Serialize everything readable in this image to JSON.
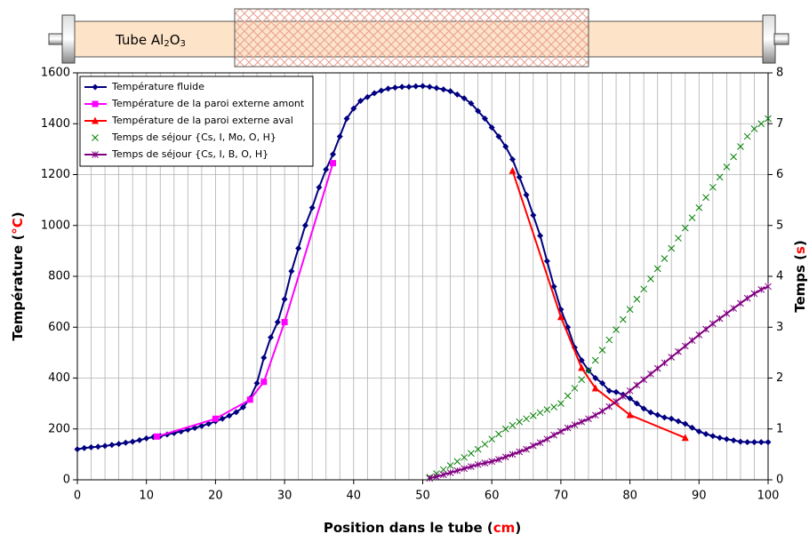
{
  "chart_data": {
    "type": "line",
    "tube_label_parts": [
      "Tube Al",
      "2",
      "O",
      "3"
    ],
    "xlabel_parts": [
      "Position dans le tube (",
      "cm",
      ")"
    ],
    "ylabel_parts": [
      "Température (",
      "°C",
      ")"
    ],
    "y2label_parts": [
      "Temps (",
      "s",
      ")"
    ],
    "xlim": [
      0,
      100
    ],
    "xticks": [
      0,
      10,
      20,
      30,
      40,
      50,
      60,
      70,
      80,
      90,
      100
    ],
    "xminorticks": [
      2,
      4,
      6,
      8,
      12,
      14,
      16,
      18,
      22,
      24,
      26,
      28,
      32,
      34,
      36,
      38,
      42,
      44,
      46,
      48,
      52,
      54,
      56,
      58,
      62,
      64,
      66,
      68,
      72,
      74,
      76,
      78,
      82,
      84,
      86,
      88,
      92,
      94,
      96,
      98
    ],
    "ylim": [
      0,
      1600
    ],
    "yticks": [
      0,
      200,
      400,
      600,
      800,
      1000,
      1200,
      1400,
      1600
    ],
    "y2lim": [
      0,
      8
    ],
    "y2ticks": [
      0,
      1,
      2,
      3,
      4,
      5,
      6,
      7,
      8
    ],
    "grid": true,
    "legend": "upper left",
    "series": [
      {
        "name": "Température fluide",
        "color": "#000080",
        "marker": "diamond",
        "line": true,
        "x": [
          0,
          1,
          2,
          3,
          4,
          5,
          6,
          7,
          8,
          9,
          10,
          11,
          12,
          13,
          14,
          15,
          16,
          17,
          18,
          19,
          20,
          21,
          22,
          23,
          24,
          25,
          26,
          27,
          28,
          29,
          30,
          31,
          32,
          33,
          34,
          35,
          36,
          37,
          38,
          39,
          40,
          41,
          42,
          43,
          44,
          45,
          46,
          47,
          48,
          49,
          50,
          51,
          52,
          53,
          54,
          55,
          56,
          57,
          58,
          59,
          60,
          61,
          62,
          63,
          64,
          65,
          66,
          67,
          68,
          69,
          70,
          71,
          72,
          73,
          74,
          75,
          76,
          77,
          78,
          79,
          80,
          81,
          82,
          83,
          84,
          85,
          86,
          87,
          88,
          89,
          90,
          91,
          92,
          93,
          94,
          95,
          96,
          97,
          98,
          99,
          100
        ],
        "values": [
          120,
          125,
          128,
          130,
          133,
          137,
          141,
          146,
          150,
          156,
          163,
          168,
          172,
          178,
          184,
          190,
          197,
          204,
          212,
          220,
          230,
          240,
          252,
          266,
          285,
          320,
          380,
          480,
          560,
          620,
          710,
          820,
          910,
          1000,
          1070,
          1150,
          1220,
          1280,
          1350,
          1420,
          1460,
          1490,
          1505,
          1520,
          1530,
          1538,
          1542,
          1545,
          1545,
          1547,
          1548,
          1545,
          1540,
          1535,
          1528,
          1515,
          1500,
          1480,
          1450,
          1420,
          1385,
          1350,
          1310,
          1260,
          1190,
          1120,
          1040,
          960,
          860,
          760,
          670,
          600,
          520,
          470,
          430,
          400,
          380,
          350,
          345,
          335,
          320,
          300,
          280,
          265,
          255,
          245,
          240,
          230,
          220,
          205,
          190,
          180,
          172,
          165,
          160,
          155,
          150,
          148,
          148,
          148,
          148
        ]
      },
      {
        "name": "Température de la paroi externe amont",
        "color": "#ff00ff",
        "marker": "square",
        "line": true,
        "x": [
          11.5,
          20,
          25,
          27,
          30,
          37
        ],
        "values": [
          170,
          240,
          315,
          385,
          620,
          1245
        ]
      },
      {
        "name": "Température de la paroi externe aval",
        "color": "#ff0000",
        "marker": "triangle",
        "line": true,
        "x": [
          63,
          70,
          73,
          75,
          80,
          88
        ],
        "values": [
          1215,
          640,
          440,
          360,
          255,
          165
        ]
      },
      {
        "name": "Temps de séjour {Cs, I, Mo, O, H}",
        "color": "#008000",
        "marker": "x",
        "line": false,
        "axis": "y2",
        "x": [
          51,
          52,
          53,
          54,
          55,
          56,
          57,
          58,
          59,
          60,
          61,
          62,
          63,
          64,
          65,
          66,
          67,
          68,
          69,
          70,
          71,
          72,
          73,
          74,
          75,
          76,
          77,
          78,
          79,
          80,
          81,
          82,
          83,
          84,
          85,
          86,
          87,
          88,
          89,
          90,
          91,
          92,
          93,
          94,
          95,
          96,
          97,
          98,
          99,
          100
        ],
        "values": [
          0.05,
          0.12,
          0.2,
          0.28,
          0.36,
          0.44,
          0.52,
          0.6,
          0.7,
          0.8,
          0.9,
          1.0,
          1.07,
          1.14,
          1.2,
          1.26,
          1.32,
          1.38,
          1.43,
          1.5,
          1.65,
          1.8,
          1.97,
          2.15,
          2.35,
          2.55,
          2.75,
          2.95,
          3.15,
          3.35,
          3.55,
          3.75,
          3.95,
          4.15,
          4.35,
          4.55,
          4.75,
          4.95,
          5.15,
          5.35,
          5.55,
          5.75,
          5.95,
          6.15,
          6.35,
          6.55,
          6.75,
          6.9,
          7.0,
          7.1
        ]
      },
      {
        "name": "Temps de séjour {Cs, I, B, O, H}",
        "color": "#800080",
        "marker": "star",
        "line": true,
        "axis": "y2",
        "x": [
          51,
          52,
          53,
          54,
          55,
          56,
          57,
          58,
          59,
          60,
          61,
          62,
          63,
          64,
          65,
          66,
          67,
          68,
          69,
          70,
          71,
          72,
          73,
          74,
          75,
          76,
          77,
          78,
          79,
          80,
          81,
          82,
          83,
          84,
          85,
          86,
          87,
          88,
          89,
          90,
          91,
          92,
          93,
          94,
          95,
          96,
          97,
          98,
          99,
          100
        ],
        "values": [
          0.03,
          0.06,
          0.1,
          0.14,
          0.18,
          0.22,
          0.26,
          0.3,
          0.33,
          0.36,
          0.4,
          0.45,
          0.5,
          0.55,
          0.6,
          0.67,
          0.73,
          0.8,
          0.88,
          0.95,
          1.02,
          1.08,
          1.14,
          1.2,
          1.27,
          1.35,
          1.44,
          1.54,
          1.64,
          1.75,
          1.86,
          1.97,
          2.08,
          2.19,
          2.3,
          2.41,
          2.52,
          2.63,
          2.74,
          2.85,
          2.96,
          3.07,
          3.17,
          3.27,
          3.37,
          3.47,
          3.57,
          3.66,
          3.74,
          3.8
        ]
      }
    ]
  }
}
